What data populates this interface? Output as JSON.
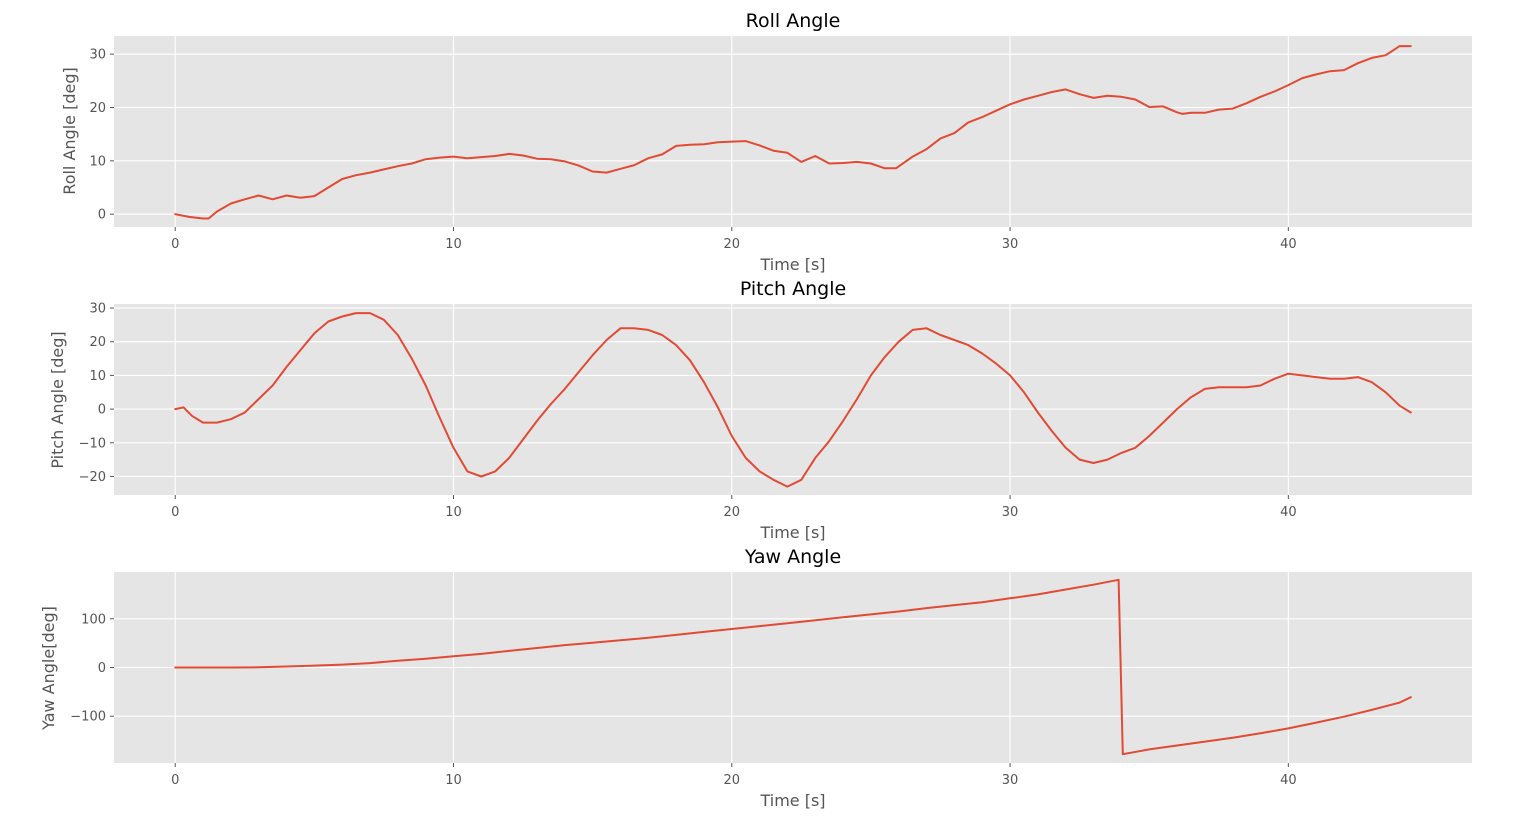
{
  "colors": {
    "series": "#e24a33",
    "plot_background": "#e5e5e5",
    "grid": "#ffffff"
  },
  "chart_data": [
    {
      "type": "line",
      "title": "Roll Angle",
      "xlabel": "Time [s]",
      "ylabel": "Roll Angle [deg]",
      "xlim": [
        -2.2,
        46.6
      ],
      "ylim": [
        -2.4,
        33.4
      ],
      "xticks": [
        0,
        10,
        20,
        30,
        40
      ],
      "yticks": [
        0,
        10,
        20,
        30
      ],
      "grid": true,
      "series": [
        {
          "x": [
            0,
            0.5,
            1,
            1.2,
            1.5,
            2,
            2.5,
            3,
            3.5,
            4,
            4.5,
            5,
            5.5,
            6,
            6.5,
            7,
            7.5,
            8,
            8.5,
            9,
            9.5,
            10,
            10.5,
            11,
            11.5,
            12,
            12.5,
            13,
            13.5,
            14,
            14.5,
            15,
            15.5,
            16,
            16.5,
            17,
            17.5,
            18,
            18.5,
            19,
            19.5,
            20,
            20.5,
            21,
            21.5,
            22,
            22.5,
            23,
            23.5,
            24,
            24.5,
            25,
            25.5,
            25.9,
            26.5,
            27,
            27.5,
            28,
            28.5,
            29,
            29.5,
            30,
            30.5,
            31,
            31.5,
            32,
            32.5,
            33,
            33.5,
            34,
            34.5,
            35,
            35.5,
            36,
            36.2,
            36.5,
            37,
            37.5,
            38,
            38.5,
            39,
            39.5,
            40,
            40.5,
            41,
            41.5,
            42,
            42.5,
            43,
            43.5,
            44,
            44.4
          ],
          "y": [
            0,
            -0.5,
            -0.8,
            -0.8,
            0.5,
            2,
            2.8,
            3.5,
            2.8,
            3.5,
            3.1,
            3.4,
            5,
            6.6,
            7.3,
            7.8,
            8.4,
            9,
            9.5,
            10.3,
            10.6,
            10.8,
            10.5,
            10.7,
            10.9,
            11.3,
            11,
            10.4,
            10.3,
            9.9,
            9.1,
            8,
            7.8,
            8.5,
            9.2,
            10.5,
            11.2,
            12.8,
            13,
            13.1,
            13.5,
            13.6,
            13.7,
            12.9,
            11.9,
            11.5,
            9.8,
            10.9,
            9.5,
            9.6,
            9.8,
            9.5,
            8.6,
            8.6,
            10.8,
            12.2,
            14.2,
            15.2,
            17.2,
            18.2,
            19.4,
            20.6,
            21.5,
            22.2,
            22.9,
            23.4,
            22.5,
            21.8,
            22.2,
            22,
            21.5,
            20.1,
            20.2,
            19.1,
            18.8,
            19,
            19,
            19.6,
            19.8,
            20.8,
            22,
            23,
            24.2,
            25.5,
            26.2,
            26.8,
            27,
            28.3,
            29.3,
            29.8,
            31.5,
            31.5
          ],
          "color": "#e24a33"
        }
      ]
    },
    {
      "type": "line",
      "title": "Pitch Angle",
      "xlabel": "Time [s]",
      "ylabel": "Pitch Angle [deg]",
      "xlim": [
        -2.2,
        46.6
      ],
      "ylim": [
        -25.5,
        31.2
      ],
      "xticks": [
        0,
        10,
        20,
        30,
        40
      ],
      "yticks": [
        -20,
        -10,
        0,
        10,
        20,
        30
      ],
      "grid": true,
      "series": [
        {
          "x": [
            0,
            0.3,
            0.6,
            1,
            1.5,
            2,
            2.5,
            3,
            3.5,
            4,
            4.5,
            5,
            5.5,
            6,
            6.5,
            7,
            7.5,
            8,
            8.5,
            9,
            9.5,
            10,
            10.5,
            11,
            11.5,
            12,
            12.5,
            13,
            13.5,
            14,
            14.5,
            15,
            15.5,
            16,
            16.5,
            17,
            17.5,
            18,
            18.5,
            19,
            19.5,
            20,
            20.5,
            21,
            21.5,
            22,
            22.5,
            23,
            23.5,
            24,
            24.5,
            25,
            25.5,
            26,
            26.5,
            27,
            27.5,
            28,
            28.5,
            29,
            29.5,
            30,
            30.5,
            31,
            31.5,
            32,
            32.5,
            33,
            33.5,
            34,
            34.5,
            35,
            35.5,
            36,
            36.5,
            37,
            37.5,
            38,
            38.5,
            39,
            39.5,
            40,
            40.5,
            41,
            41.5,
            42,
            42.5,
            43,
            43.5,
            44,
            44.4
          ],
          "y": [
            0,
            0.5,
            -2,
            -4,
            -4,
            -3,
            -1,
            3,
            7,
            12.5,
            17.5,
            22.5,
            26,
            27.5,
            28.5,
            28.5,
            26.5,
            22,
            15,
            7,
            -2.5,
            -11.5,
            -18.5,
            -20,
            -18.5,
            -14.5,
            -9,
            -3.5,
            1.5,
            6,
            11,
            16,
            20.5,
            24,
            24,
            23.5,
            22,
            19,
            14.5,
            8,
            0.5,
            -8,
            -14.5,
            -18.5,
            -21,
            -23,
            -21,
            -14.5,
            -9.5,
            -3.5,
            3,
            10,
            15.5,
            20,
            23.5,
            24,
            22,
            20.5,
            19,
            16.5,
            13.5,
            10,
            5,
            -1,
            -6.5,
            -11.5,
            -15,
            -16,
            -15,
            -13,
            -11.5,
            -8,
            -4,
            0,
            3.5,
            6,
            6.5,
            6.5,
            6.5,
            7,
            9,
            10.5,
            10,
            9.5,
            9,
            9,
            9.5,
            8,
            5,
            1,
            -1
          ],
          "color": "#e24a33"
        }
      ]
    },
    {
      "type": "line",
      "title": "Yaw Angle",
      "xlabel": "Time [s]",
      "ylabel": "Yaw Angle[deg]",
      "xlim": [
        -2.2,
        46.6
      ],
      "ylim": [
        -196,
        196
      ],
      "xticks": [
        0,
        10,
        20,
        30,
        40
      ],
      "yticks": [
        -100,
        0,
        100
      ],
      "grid": true,
      "series": [
        {
          "x": [
            0,
            1,
            2,
            3,
            4,
            5,
            6,
            7,
            8,
            9,
            10,
            11,
            12,
            13,
            14,
            15,
            16,
            17,
            18,
            19,
            20,
            21,
            22,
            23,
            24,
            25,
            26,
            27,
            28,
            29,
            30,
            31,
            32,
            33,
            33.9,
            34.05,
            35,
            36,
            37,
            38,
            39,
            40,
            41,
            42,
            43,
            44,
            44.4
          ],
          "y": [
            0,
            0,
            0,
            0.5,
            2,
            4,
            6,
            9,
            14,
            18,
            23,
            28,
            34,
            40,
            46,
            51,
            56,
            61,
            67,
            73,
            79,
            85,
            91,
            97,
            103,
            109,
            115,
            122,
            128,
            134,
            142,
            150,
            160,
            170,
            180,
            -178,
            -168,
            -160,
            -152,
            -144,
            -135,
            -125,
            -113,
            -101,
            -87,
            -72,
            -61
          ],
          "color": "#e24a33"
        }
      ]
    }
  ]
}
